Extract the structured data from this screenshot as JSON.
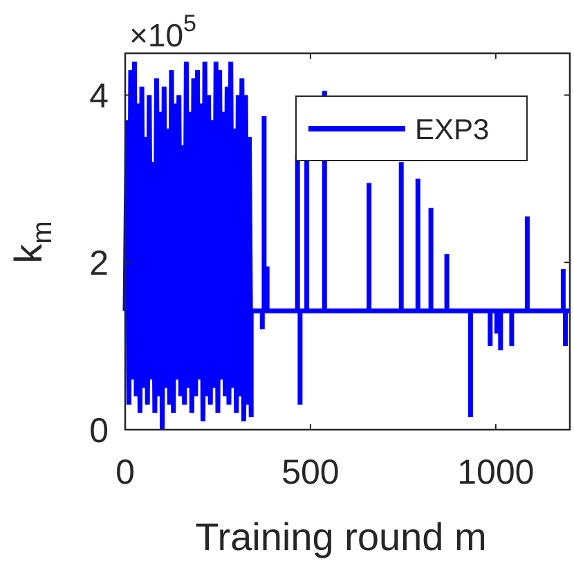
{
  "chart_data": {
    "type": "line",
    "xlabel": "Training round m",
    "ylabel": "k",
    "ylabel_subscript": "m",
    "y_exponent_prefix": "×10",
    "y_exponent": "5",
    "xlim": [
      0,
      1200
    ],
    "ylim": [
      0,
      4.5
    ],
    "y_scale_factor": 100000,
    "x_ticks": [
      0,
      500,
      1000
    ],
    "x_tick_labels": [
      "0",
      "500",
      "1000"
    ],
    "y_ticks": [
      0,
      2,
      4
    ],
    "y_tick_labels": [
      "0",
      "2",
      "4"
    ],
    "grid": false,
    "legend_position": "top-right",
    "baseline": 1.42,
    "series": [
      {
        "name": "EXP3",
        "color": "#0000ff",
        "dense_region": {
          "x_start": 0,
          "x_end": 340,
          "local_highs": [
            3.7,
            4.3,
            4.4,
            3.9,
            4.1,
            3.5,
            4.0,
            3.2,
            4.2,
            3.8,
            4.1,
            3.6,
            4.3,
            3.9,
            4.0,
            3.4,
            4.4,
            3.8,
            4.2,
            4.3,
            3.9,
            4.4,
            4.0,
            3.7,
            4.4,
            4.3,
            3.8,
            4.1,
            4.4,
            3.6,
            4.0,
            4.2,
            4.0,
            3.5
          ],
          "local_lows": [
            0.3,
            0.6,
            0.4,
            0.2,
            0.5,
            0.3,
            0.6,
            0.2,
            0.4,
            0.0,
            0.5,
            0.3,
            0.2,
            0.6,
            0.4,
            0.3,
            0.5,
            0.2,
            0.4,
            0.6,
            0.1,
            0.4,
            0.3,
            0.5,
            0.2,
            0.6,
            0.4,
            0.3,
            0.5,
            0.2,
            0.4,
            0.1,
            0.3,
            0.15
          ]
        },
        "spikes": [
          {
            "x": 375,
            "y": 3.75
          },
          {
            "x": 383,
            "y": 1.95
          },
          {
            "x": 370,
            "y": 1.2
          },
          {
            "x": 465,
            "y": 3.3
          },
          {
            "x": 472,
            "y": 0.3
          },
          {
            "x": 490,
            "y": 3.3
          },
          {
            "x": 538,
            "y": 4.05
          },
          {
            "x": 658,
            "y": 2.95
          },
          {
            "x": 745,
            "y": 3.2
          },
          {
            "x": 790,
            "y": 3.0
          },
          {
            "x": 825,
            "y": 2.65
          },
          {
            "x": 868,
            "y": 2.1
          },
          {
            "x": 932,
            "y": 0.15
          },
          {
            "x": 985,
            "y": 1.0
          },
          {
            "x": 1003,
            "y": 1.15
          },
          {
            "x": 1013,
            "y": 0.95
          },
          {
            "x": 1043,
            "y": 1.0
          },
          {
            "x": 1085,
            "y": 2.55
          },
          {
            "x": 1182,
            "y": 1.92
          },
          {
            "x": 1188,
            "y": 1.0
          }
        ]
      }
    ]
  }
}
